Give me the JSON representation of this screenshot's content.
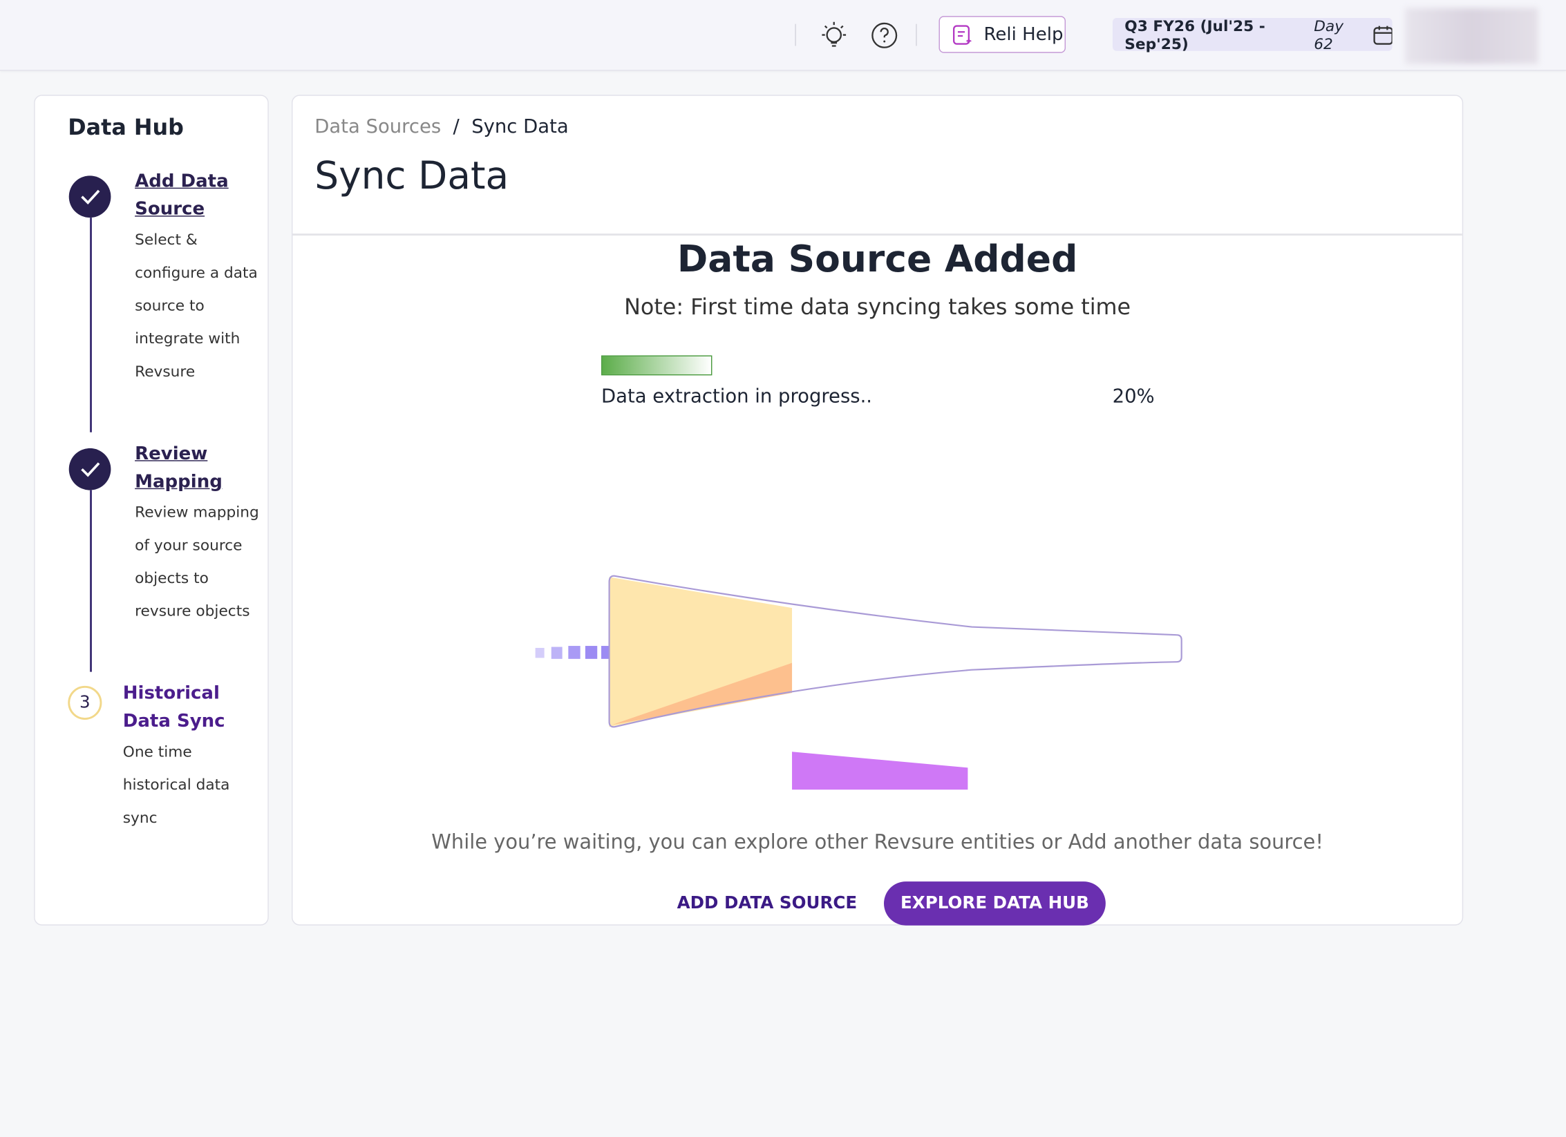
{
  "header": {
    "reli_help": "Reli Help",
    "period": "Q3 FY26 (Jul'25 - Sep'25)",
    "day": "Day 62"
  },
  "sidebar": {
    "title": "Data Hub",
    "steps": [
      {
        "title": "Add Data Source",
        "description": "Select & configure a data source to integrate with Revsure"
      },
      {
        "title": "Review Mapping",
        "description": "Review mapping of your source objects to revsure objects"
      },
      {
        "number": "3",
        "title": "Historical Data Sync",
        "description": "One time historical data sync"
      }
    ]
  },
  "breadcrumb": {
    "parent": "Data Sources",
    "separator": "/",
    "current": "Sync Data"
  },
  "page_title": "Sync Data",
  "status": {
    "heading": "Data Source Added",
    "note": "Note: First time data syncing takes some time"
  },
  "progress": {
    "label": "Data extraction in progress..",
    "value": 20,
    "value_label": "20%"
  },
  "message": "While you’re waiting, you can explore other Revsure entities or Add another data source!",
  "buttons": {
    "add": "ADD DATA SOURCE",
    "explore": "EXPLORE DATA HUB"
  }
}
